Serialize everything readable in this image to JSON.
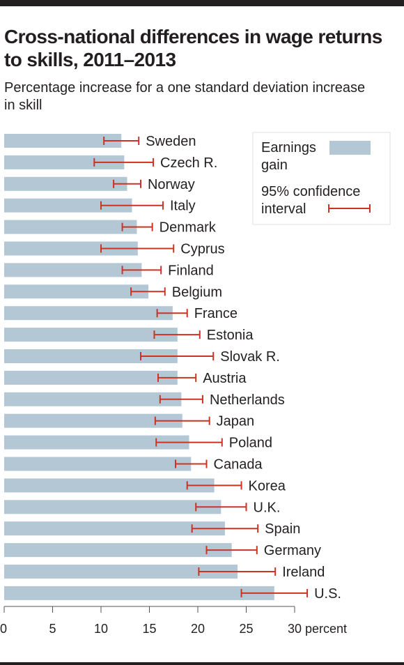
{
  "title": "Cross-national differences in wage returns to skills, 2011–2013",
  "subtitle": "Percentage increase for a one standard deviation increase in skill",
  "legend": {
    "bar_label": "Earnings gain",
    "ci_label": "95% confidence interval"
  },
  "colors": {
    "bar": "#b3c7d4",
    "ci": "#cc3323",
    "text": "#231f20"
  },
  "chart_data": {
    "type": "bar",
    "orientation": "horizontal",
    "title": "Cross-national differences in wage returns to skills, 2011–2013",
    "subtitle": "Percentage increase for a one standard deviation increase in skill",
    "xlabel": "percent",
    "xlim": [
      0,
      30
    ],
    "xticks": [
      0,
      5,
      10,
      15,
      20,
      25,
      30
    ],
    "xtick_labels": [
      "0",
      "5",
      "10",
      "15",
      "20",
      "25",
      "30 percent"
    ],
    "grid": false,
    "legend_position": "top-right",
    "series": [
      {
        "name": "Earnings gain",
        "kind": "bar"
      },
      {
        "name": "95% confidence interval",
        "kind": "error-bar"
      }
    ],
    "categories": [
      "Sweden",
      "Czech R.",
      "Norway",
      "Italy",
      "Denmark",
      "Cyprus",
      "Finland",
      "Belgium",
      "France",
      "Estonia",
      "Slovak R.",
      "Austria",
      "Netherlands",
      "Japan",
      "Poland",
      "Canada",
      "Korea",
      "U.K.",
      "Spain",
      "Germany",
      "Ireland",
      "U.S."
    ],
    "values": [
      12.1,
      12.4,
      12.7,
      13.2,
      13.7,
      13.8,
      14.2,
      14.9,
      17.4,
      17.9,
      17.9,
      17.9,
      18.3,
      18.4,
      19.1,
      19.3,
      21.7,
      22.4,
      22.8,
      23.5,
      24.1,
      27.9
    ],
    "ci_low": [
      10.3,
      9.3,
      11.3,
      10.0,
      12.2,
      10.0,
      12.2,
      13.1,
      15.8,
      15.5,
      14.1,
      15.9,
      16.1,
      15.6,
      15.7,
      17.7,
      18.9,
      19.8,
      19.4,
      20.9,
      20.1,
      24.5
    ],
    "ci_high": [
      13.9,
      15.4,
      14.1,
      16.4,
      15.3,
      17.5,
      16.2,
      16.6,
      18.9,
      20.2,
      21.6,
      19.8,
      20.5,
      21.2,
      22.5,
      20.9,
      24.5,
      25.0,
      26.2,
      26.1,
      28.0,
      31.3
    ]
  }
}
